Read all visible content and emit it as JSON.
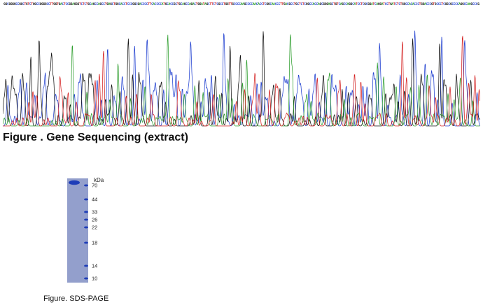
{
  "sequence": {
    "bases": "GGCGGGGCCGGCTGTCTGGCCGGGGCCTTGGTGACTCCGGAGGGTCTCTGCAGCCAGCCTGAGCTGGCACCTCCCGGCGACCCCTTCACCCCATGCACCGCTGCAGCCAGACTGGATAGCTTCTCGCCTGGTTGCCCCAAGCCCCAACACCTCGGCAACCCTTGACGCCTGCTCTCGGCCACCAGCGGGAGCTGTCAGCCAGGCATCCTCGCGGATCAGGATCCTGATCTCTGGCCACACCCTGGACCCGTGCCCTCGGCGCCCCAGGCCAAGCCCGAGAGCCTCGAGCCCCGGGCTCCTCCC",
    "colors": {
      "A": "#2e9e2e",
      "C": "#1f3fd0",
      "G": "#111111",
      "T": "#d42020"
    }
  },
  "figure1": {
    "caption": "Figure . Gene Sequencing (extract)"
  },
  "gel": {
    "unit_label": "kDa",
    "markers": [
      "70",
      "44",
      "33",
      "26",
      "22",
      "18",
      "14",
      "10"
    ],
    "lane_background": "#9aa6d0",
    "band_color": "#1e3db8"
  },
  "figure2": {
    "caption": "Figure. SDS-PAGE"
  }
}
